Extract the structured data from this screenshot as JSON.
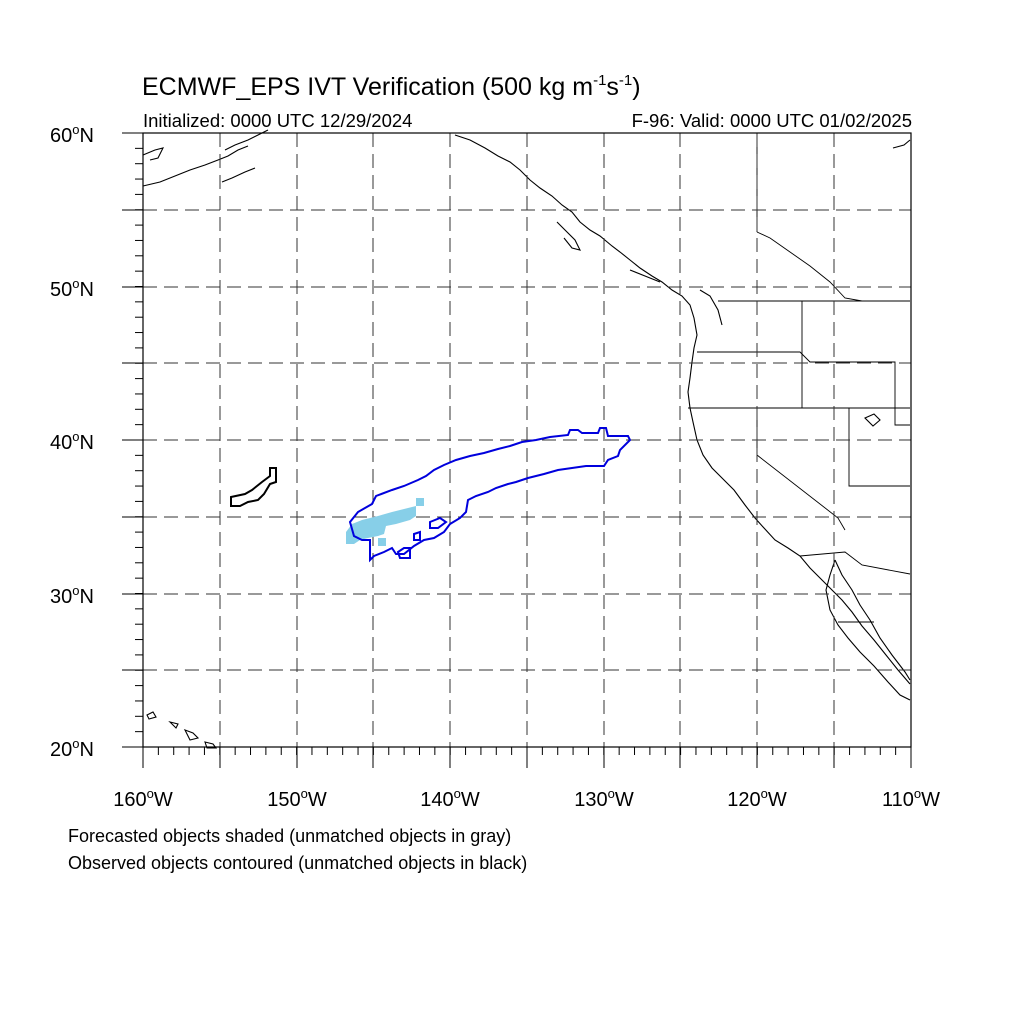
{
  "title": {
    "main": "ECMWF_EPS IVT Verification (500 kg m",
    "sup1": "-1",
    "mid": "s",
    "sup2": "-1",
    "end": ")"
  },
  "subtitle": {
    "initialized": "Initialized: 0000 UTC 12/29/2024",
    "valid": "F-96: Valid: 0000 UTC 01/02/2025"
  },
  "axes": {
    "lat_labels": [
      "60",
      "50",
      "40",
      "30",
      "20"
    ],
    "lat_suffix": "N",
    "lon_labels": [
      "160",
      "150",
      "140",
      "130",
      "120",
      "110"
    ],
    "lon_suffix": "W",
    "lat_range": [
      20,
      60
    ],
    "lon_range": [
      -160,
      -110
    ],
    "grid": "dashed every 5 degrees"
  },
  "legend_notes": [
    "Forecasted objects shaded (unmatched objects in gray)",
    "Observed objects contoured (unmatched objects in black)"
  ],
  "colors": {
    "forecast_matched_fill": "#87cfe8",
    "observed_matched_contour": "#0000dd",
    "observed_unmatched_contour": "#000000",
    "coastline": "#000000",
    "grid": "#000000"
  },
  "objects": [
    {
      "kind": "observed",
      "matched": true,
      "approx_center_lat": 37,
      "approx_center_lon": -137
    },
    {
      "kind": "observed",
      "matched": false,
      "approx_center_lat": 37,
      "approx_center_lon": -153
    },
    {
      "kind": "forecast",
      "matched": true,
      "approx_center_lat": 34,
      "approx_center_lon": -145
    }
  ]
}
